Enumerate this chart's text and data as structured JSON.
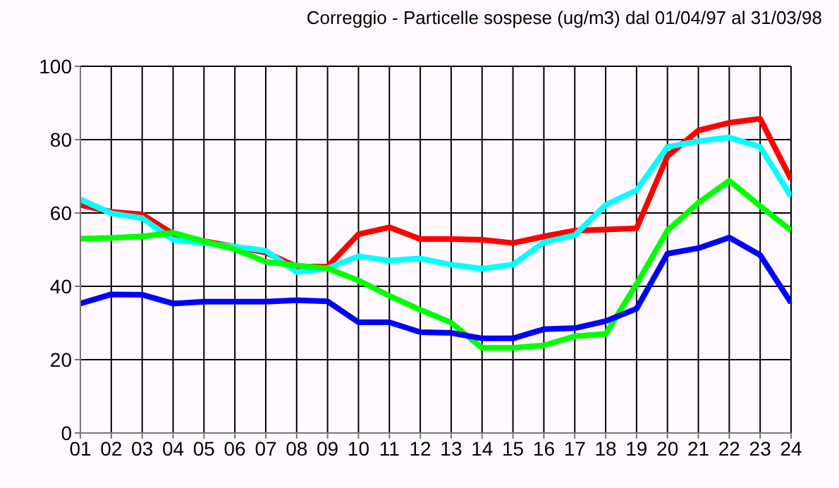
{
  "chart_data": {
    "type": "line",
    "title": "Correggio - Particelle sospese (ug/m3) dal 01/04/97 al 31/03/98",
    "categories": [
      "01",
      "02",
      "03",
      "04",
      "05",
      "06",
      "07",
      "08",
      "09",
      "10",
      "11",
      "12",
      "13",
      "14",
      "15",
      "16",
      "17",
      "18",
      "19",
      "20",
      "21",
      "22",
      "23",
      "24"
    ],
    "series": [
      {
        "color": "#ff0000",
        "values": [
          62.2,
          60.3,
          59.6,
          54.3,
          52.3,
          50.8,
          49.2,
          45.4,
          45.4,
          54.2,
          56.1,
          52.9,
          52.9,
          52.7,
          51.8,
          53.6,
          55.2,
          55.5,
          55.8,
          75.5,
          82.5,
          84.6,
          85.7,
          69.2
        ]
      },
      {
        "color": "#00ffff",
        "values": [
          63.7,
          59.9,
          58.6,
          52.7,
          51.8,
          50.8,
          49.7,
          43.9,
          44.9,
          48.2,
          47,
          47.6,
          45.9,
          44.8,
          45.9,
          52,
          53.9,
          62.2,
          66.2,
          78,
          79.6,
          80.6,
          78,
          64.5
        ]
      },
      {
        "color": "#00ff00",
        "values": [
          53,
          53.2,
          53.6,
          54.6,
          52.3,
          50.1,
          46.7,
          45.7,
          44.9,
          41.6,
          37.4,
          33.6,
          30.1,
          23.2,
          23.2,
          23.9,
          26.4,
          27,
          40.6,
          55.2,
          62.8,
          68.8,
          61.9,
          55.2
        ]
      },
      {
        "color": "#0000ff",
        "values": [
          35.3,
          37.8,
          37.7,
          35.3,
          35.8,
          35.8,
          35.8,
          36.2,
          35.9,
          30.2,
          30.2,
          27.5,
          27.3,
          25.8,
          25.8,
          28.3,
          28.6,
          30.5,
          33.9,
          48.9,
          50.4,
          53.3,
          48.5,
          35.5
        ]
      }
    ],
    "ylim": [
      0,
      100
    ],
    "yticks": [
      0,
      20,
      40,
      60,
      80,
      100
    ],
    "grid": true,
    "marker": "none",
    "line_style": "solid"
  }
}
